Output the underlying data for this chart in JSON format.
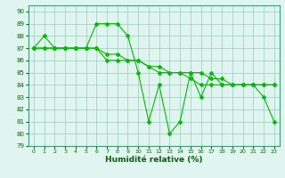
{
  "xlabel": "Humidité relative (%)",
  "xlim": [
    -0.5,
    23.5
  ],
  "ylim": [
    79,
    90.5
  ],
  "yticks": [
    79,
    80,
    81,
    82,
    83,
    84,
    85,
    86,
    87,
    88,
    89,
    90
  ],
  "xticks": [
    0,
    1,
    2,
    3,
    4,
    5,
    6,
    7,
    8,
    9,
    10,
    11,
    12,
    13,
    14,
    15,
    16,
    17,
    18,
    19,
    20,
    21,
    22,
    23
  ],
  "line1_x": [
    0,
    1,
    2,
    3,
    4,
    5,
    6,
    7,
    8,
    9,
    10,
    11,
    12,
    13,
    14,
    15,
    16,
    17,
    18,
    19,
    20,
    21,
    22,
    23
  ],
  "line1_y": [
    87,
    88,
    87,
    87,
    87,
    87,
    89,
    89,
    89,
    88,
    85,
    81,
    84,
    80,
    81,
    85,
    83,
    85,
    84,
    84,
    84,
    84,
    83,
    81
  ],
  "line2_x": [
    0,
    1,
    2,
    3,
    4,
    5,
    6,
    7,
    8,
    9,
    10,
    11,
    12,
    13,
    14,
    15,
    16,
    17,
    18,
    19,
    20,
    21,
    22,
    23
  ],
  "line2_y": [
    87,
    87,
    87,
    87,
    87,
    87,
    87,
    86.5,
    86.5,
    86,
    86,
    85.5,
    85.5,
    85,
    85,
    85,
    85,
    84.5,
    84.5,
    84,
    84,
    84,
    84,
    84
  ],
  "line3_x": [
    0,
    1,
    2,
    3,
    4,
    5,
    6,
    7,
    8,
    9,
    10,
    11,
    12,
    13,
    14,
    15,
    16,
    17,
    18,
    19,
    20,
    21,
    22,
    23
  ],
  "line3_y": [
    87,
    87,
    87,
    87,
    87,
    87,
    87,
    86,
    86,
    86,
    86,
    85.5,
    85,
    85,
    85,
    84.5,
    84,
    84,
    84,
    84,
    84,
    84,
    84,
    84
  ],
  "bg_color": "#e0f5f0",
  "grid_color": "#99ccbb",
  "line_color": "#00bb00",
  "marker": "D",
  "markersize": 2.0,
  "linewidth": 0.8
}
